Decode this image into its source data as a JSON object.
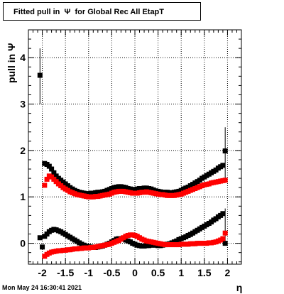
{
  "title": "Fitted pull in  Ψ  for Global Rec All EtapT",
  "timestamp": "Mon May 24 16:30:41 2021",
  "chart_data": {
    "type": "scatter",
    "title": "Fitted pull in  Ψ  for Global Rec All EtapT",
    "xlabel": "η",
    "ylabel": "pull in  Ψ",
    "xlim": [
      -2.3,
      2.3
    ],
    "ylim": [
      -0.45,
      4.6
    ],
    "x_ticks": [
      -2,
      -1.5,
      -1,
      -0.5,
      0,
      0.5,
      1,
      1.5,
      2
    ],
    "x_tick_labels": [
      "-2",
      "-1.5",
      "-1",
      "-0.5",
      "0",
      "0.5",
      "1",
      "1.5",
      "2"
    ],
    "y_ticks": [
      0,
      1,
      2,
      3,
      4
    ],
    "y_tick_labels": [
      "0",
      "1",
      "2",
      "3",
      "4"
    ],
    "grid": true,
    "series": [
      {
        "color": "#000000",
        "x": [
          -2.05,
          -1.95,
          -1.9,
          -1.85,
          -1.8,
          -1.75,
          -1.7,
          -1.65,
          -1.6,
          -1.55,
          -1.5,
          -1.45,
          -1.4,
          -1.35,
          -1.3,
          -1.25,
          -1.2,
          -1.15,
          -1.1,
          -1.05,
          -1.0,
          -0.95,
          -0.9,
          -0.85,
          -0.8,
          -0.75,
          -0.7,
          -0.65,
          -0.6,
          -0.55,
          -0.5,
          -0.45,
          -0.4,
          -0.35,
          -0.3,
          -0.25,
          -0.2,
          -0.15,
          -0.1,
          -0.05,
          0.0,
          0.05,
          0.1,
          0.15,
          0.2,
          0.25,
          0.3,
          0.35,
          0.4,
          0.45,
          0.5,
          0.55,
          0.6,
          0.65,
          0.7,
          0.75,
          0.8,
          0.85,
          0.9,
          0.95,
          1.0,
          1.05,
          1.1,
          1.15,
          1.2,
          1.25,
          1.3,
          1.35,
          1.4,
          1.45,
          1.5,
          1.55,
          1.6,
          1.65,
          1.7,
          1.75,
          1.8,
          1.85,
          1.9,
          1.95
        ],
        "y": [
          3.62,
          1.72,
          1.7,
          1.66,
          1.6,
          1.52,
          1.45,
          1.4,
          1.36,
          1.32,
          1.28,
          1.24,
          1.2,
          1.17,
          1.14,
          1.12,
          1.1,
          1.09,
          1.08,
          1.07,
          1.07,
          1.08,
          1.08,
          1.09,
          1.1,
          1.1,
          1.11,
          1.12,
          1.14,
          1.16,
          1.18,
          1.2,
          1.21,
          1.22,
          1.22,
          1.21,
          1.2,
          1.18,
          1.17,
          1.16,
          1.16,
          1.17,
          1.18,
          1.18,
          1.19,
          1.19,
          1.18,
          1.17,
          1.15,
          1.13,
          1.12,
          1.11,
          1.1,
          1.1,
          1.1,
          1.09,
          1.09,
          1.1,
          1.11,
          1.12,
          1.14,
          1.17,
          1.19,
          1.21,
          1.24,
          1.27,
          1.3,
          1.33,
          1.36,
          1.4,
          1.43,
          1.46,
          1.49,
          1.52,
          1.55,
          1.58,
          1.62,
          1.65,
          1.68,
          1.99
        ],
        "err_x": [
          -2.05,
          1.95
        ],
        "err_lo": [
          3.0,
          1.3
        ],
        "err_hi": [
          4.2,
          2.5
        ]
      },
      {
        "color": "#000000",
        "x": [
          -2.05,
          -2.0,
          -1.95,
          -1.9,
          -1.85,
          -1.8,
          -1.75,
          -1.7,
          -1.65,
          -1.6,
          -1.55,
          -1.5,
          -1.45,
          -1.4,
          -1.35,
          -1.3,
          -1.25,
          -1.2,
          -1.15,
          -1.1,
          -1.05,
          -1.0,
          -0.95,
          -0.9,
          -0.85,
          -0.8,
          -0.75,
          -0.7,
          -0.65,
          -0.6,
          -0.55,
          -0.5,
          -0.45,
          -0.4,
          -0.35,
          -0.3,
          -0.25,
          -0.2,
          -0.15,
          -0.1,
          -0.05,
          0.0,
          0.05,
          0.1,
          0.15,
          0.2,
          0.25,
          0.3,
          0.35,
          0.4,
          0.45,
          0.5,
          0.55,
          0.6,
          0.65,
          0.7,
          0.75,
          0.8,
          0.85,
          0.9,
          0.95,
          1.0,
          1.05,
          1.1,
          1.15,
          1.2,
          1.25,
          1.3,
          1.35,
          1.4,
          1.45,
          1.5,
          1.55,
          1.6,
          1.65,
          1.7,
          1.75,
          1.8,
          1.85,
          1.9,
          1.95
        ],
        "y": [
          0.12,
          -0.08,
          0.15,
          0.2,
          0.25,
          0.28,
          0.3,
          0.29,
          0.27,
          0.25,
          0.22,
          0.19,
          0.16,
          0.13,
          0.1,
          0.07,
          0.04,
          0.01,
          -0.02,
          -0.04,
          -0.06,
          -0.07,
          -0.08,
          -0.09,
          -0.09,
          -0.08,
          -0.07,
          -0.06,
          -0.04,
          -0.02,
          0.0,
          0.03,
          0.06,
          0.09,
          0.1,
          0.1,
          0.09,
          0.07,
          0.05,
          0.03,
          0.0,
          -0.02,
          -0.04,
          -0.05,
          -0.06,
          -0.06,
          -0.05,
          -0.05,
          -0.04,
          -0.04,
          -0.04,
          -0.05,
          -0.05,
          -0.04,
          -0.03,
          -0.02,
          -0.01,
          0.01,
          0.03,
          0.05,
          0.08,
          0.1,
          0.12,
          0.14,
          0.17,
          0.19,
          0.22,
          0.25,
          0.28,
          0.31,
          0.34,
          0.37,
          0.4,
          0.43,
          0.46,
          0.5,
          0.53,
          0.57,
          0.6,
          0.64,
          0.0
        ],
        "err_x": [
          1.95
        ],
        "err_lo": [
          -0.05
        ],
        "err_hi": [
          0.75
        ]
      },
      {
        "color": "#ff0000",
        "x": [
          -1.95,
          -1.9,
          -1.85,
          -1.8,
          -1.75,
          -1.7,
          -1.65,
          -1.6,
          -1.55,
          -1.5,
          -1.45,
          -1.4,
          -1.35,
          -1.3,
          -1.25,
          -1.2,
          -1.15,
          -1.1,
          -1.05,
          -1.0,
          -0.95,
          -0.9,
          -0.85,
          -0.8,
          -0.75,
          -0.7,
          -0.65,
          -0.6,
          -0.55,
          -0.5,
          -0.45,
          -0.4,
          -0.35,
          -0.3,
          -0.25,
          -0.2,
          -0.15,
          -0.1,
          -0.05,
          0.0,
          0.05,
          0.1,
          0.15,
          0.2,
          0.25,
          0.3,
          0.35,
          0.4,
          0.45,
          0.5,
          0.55,
          0.6,
          0.65,
          0.7,
          0.75,
          0.8,
          0.85,
          0.9,
          0.95,
          1.0,
          1.05,
          1.1,
          1.15,
          1.2,
          1.25,
          1.3,
          1.35,
          1.4,
          1.45,
          1.5,
          1.55,
          1.6,
          1.65,
          1.7,
          1.75,
          1.8,
          1.85,
          1.9,
          1.95
        ],
        "y": [
          1.25,
          1.38,
          1.45,
          1.43,
          1.38,
          1.33,
          1.28,
          1.24,
          1.2,
          1.17,
          1.14,
          1.11,
          1.09,
          1.07,
          1.05,
          1.04,
          1.03,
          1.02,
          1.01,
          1.0,
          1.0,
          1.0,
          1.01,
          1.01,
          1.02,
          1.03,
          1.04,
          1.05,
          1.06,
          1.08,
          1.1,
          1.11,
          1.12,
          1.12,
          1.12,
          1.11,
          1.1,
          1.09,
          1.08,
          1.08,
          1.08,
          1.09,
          1.1,
          1.1,
          1.11,
          1.1,
          1.09,
          1.08,
          1.07,
          1.06,
          1.05,
          1.05,
          1.04,
          1.03,
          1.03,
          1.03,
          1.03,
          1.04,
          1.05,
          1.06,
          1.08,
          1.1,
          1.12,
          1.14,
          1.16,
          1.18,
          1.2,
          1.22,
          1.24,
          1.26,
          1.27,
          1.28,
          1.3,
          1.31,
          1.32,
          1.33,
          1.34,
          1.35,
          1.36
        ]
      },
      {
        "color": "#ff0000",
        "x": [
          -1.95,
          -1.9,
          -1.85,
          -1.8,
          -1.75,
          -1.7,
          -1.65,
          -1.6,
          -1.55,
          -1.5,
          -1.45,
          -1.4,
          -1.35,
          -1.3,
          -1.25,
          -1.2,
          -1.15,
          -1.1,
          -1.05,
          -1.0,
          -0.95,
          -0.9,
          -0.85,
          -0.8,
          -0.75,
          -0.7,
          -0.65,
          -0.6,
          -0.55,
          -0.5,
          -0.45,
          -0.4,
          -0.35,
          -0.3,
          -0.25,
          -0.2,
          -0.15,
          -0.1,
          -0.05,
          0.0,
          0.05,
          0.1,
          0.15,
          0.2,
          0.25,
          0.3,
          0.35,
          0.4,
          0.45,
          0.5,
          0.55,
          0.6,
          0.65,
          0.7,
          0.75,
          0.8,
          0.85,
          0.9,
          0.95,
          1.0,
          1.05,
          1.1,
          1.15,
          1.2,
          1.25,
          1.3,
          1.35,
          1.4,
          1.45,
          1.5,
          1.55,
          1.6,
          1.65,
          1.7,
          1.75,
          1.8,
          1.85,
          1.9,
          1.95
        ],
        "y": [
          -0.28,
          -0.24,
          -0.21,
          -0.19,
          -0.18,
          -0.17,
          -0.16,
          -0.16,
          -0.15,
          -0.15,
          -0.14,
          -0.14,
          -0.13,
          -0.12,
          -0.12,
          -0.11,
          -0.11,
          -0.1,
          -0.1,
          -0.1,
          -0.09,
          -0.09,
          -0.08,
          -0.07,
          -0.06,
          -0.05,
          -0.04,
          -0.03,
          -0.02,
          0.0,
          0.02,
          0.04,
          0.06,
          0.09,
          0.12,
          0.15,
          0.17,
          0.18,
          0.18,
          0.17,
          0.15,
          0.12,
          0.09,
          0.07,
          0.05,
          0.04,
          0.03,
          0.02,
          0.01,
          0.0,
          -0.01,
          -0.02,
          -0.03,
          -0.03,
          -0.03,
          -0.03,
          -0.03,
          -0.03,
          -0.03,
          -0.02,
          -0.02,
          -0.02,
          -0.02,
          -0.01,
          -0.01,
          -0.01,
          0.0,
          0.0,
          0.0,
          0.0,
          0.0,
          0.01,
          0.01,
          0.02,
          0.03,
          0.05,
          0.07,
          0.1,
          0.22
        ]
      }
    ]
  }
}
